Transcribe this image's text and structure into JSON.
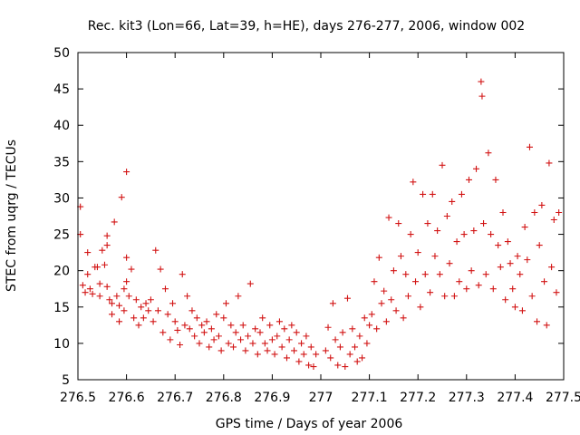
{
  "chart_data": {
    "type": "scatter",
    "title": "Rec. kit3 (Lon=66, Lat=39, h=HE), days 276-277, 2006, window 002",
    "xlabel": "GPS time / Days of year 2006",
    "ylabel": "STEC from uqrg / TECUs",
    "xlim": [
      276.5,
      277.5
    ],
    "ylim": [
      5,
      50
    ],
    "x_ticks": [
      276.5,
      276.6,
      276.7,
      276.8,
      276.9,
      277.0,
      277.1,
      277.2,
      277.3,
      277.4,
      277.5
    ],
    "x_tick_labels": [
      "276.5",
      "276.6",
      "276.7",
      "276.8",
      "276.9",
      "277",
      "277.1",
      "277.2",
      "277.3",
      "277.4",
      "277.5"
    ],
    "y_ticks": [
      5,
      10,
      15,
      20,
      25,
      30,
      35,
      40,
      45,
      50
    ],
    "y_tick_labels": [
      "5",
      "10",
      "15",
      "20",
      "25",
      "30",
      "35",
      "40",
      "45",
      "50"
    ],
    "grid": false,
    "legend": "none",
    "marker": "+",
    "color": "#d21414",
    "points": [
      [
        276.505,
        28.8
      ],
      [
        276.505,
        25.0
      ],
      [
        276.51,
        18.0
      ],
      [
        276.515,
        17.0
      ],
      [
        276.52,
        22.5
      ],
      [
        276.52,
        19.5
      ],
      [
        276.525,
        17.5
      ],
      [
        276.53,
        16.8
      ],
      [
        276.535,
        20.5
      ],
      [
        276.54,
        20.5
      ],
      [
        276.545,
        18.2
      ],
      [
        276.545,
        16.5
      ],
      [
        276.55,
        22.8
      ],
      [
        276.555,
        20.8
      ],
      [
        276.56,
        24.8
      ],
      [
        276.56,
        23.5
      ],
      [
        276.56,
        17.8
      ],
      [
        276.565,
        16.0
      ],
      [
        276.57,
        15.5
      ],
      [
        276.57,
        14.0
      ],
      [
        276.575,
        26.7
      ],
      [
        276.58,
        16.5
      ],
      [
        276.585,
        15.2
      ],
      [
        276.585,
        13.0
      ],
      [
        276.59,
        30.1
      ],
      [
        276.595,
        17.5
      ],
      [
        276.595,
        14.5
      ],
      [
        276.6,
        33.6
      ],
      [
        276.6,
        21.8
      ],
      [
        276.6,
        18.5
      ],
      [
        276.605,
        16.5
      ],
      [
        276.61,
        20.2
      ],
      [
        276.615,
        13.5
      ],
      [
        276.62,
        16.0
      ],
      [
        276.625,
        12.5
      ],
      [
        276.63,
        15.0
      ],
      [
        276.635,
        13.5
      ],
      [
        276.64,
        15.5
      ],
      [
        276.645,
        14.5
      ],
      [
        276.65,
        16.0
      ],
      [
        276.655,
        13.0
      ],
      [
        276.66,
        22.8
      ],
      [
        276.665,
        14.5
      ],
      [
        276.67,
        20.2
      ],
      [
        276.675,
        11.5
      ],
      [
        276.68,
        17.5
      ],
      [
        276.685,
        14.0
      ],
      [
        276.69,
        10.5
      ],
      [
        276.695,
        15.5
      ],
      [
        276.7,
        13.0
      ],
      [
        276.705,
        11.8
      ],
      [
        276.71,
        9.8
      ],
      [
        276.715,
        19.5
      ],
      [
        276.72,
        12.5
      ],
      [
        276.725,
        16.5
      ],
      [
        276.73,
        12.0
      ],
      [
        276.735,
        14.5
      ],
      [
        276.74,
        11.0
      ],
      [
        276.745,
        13.5
      ],
      [
        276.75,
        10.0
      ],
      [
        276.755,
        12.5
      ],
      [
        276.76,
        11.5
      ],
      [
        276.765,
        13.0
      ],
      [
        276.77,
        9.5
      ],
      [
        276.775,
        12.0
      ],
      [
        276.78,
        10.5
      ],
      [
        276.785,
        14.0
      ],
      [
        276.79,
        11.0
      ],
      [
        276.795,
        9.0
      ],
      [
        276.8,
        13.5
      ],
      [
        276.805,
        15.5
      ],
      [
        276.81,
        10.0
      ],
      [
        276.815,
        12.5
      ],
      [
        276.82,
        9.5
      ],
      [
        276.825,
        11.5
      ],
      [
        276.83,
        16.5
      ],
      [
        276.835,
        10.5
      ],
      [
        276.84,
        12.5
      ],
      [
        276.845,
        9.0
      ],
      [
        276.85,
        11.0
      ],
      [
        276.855,
        18.2
      ],
      [
        276.86,
        10.0
      ],
      [
        276.865,
        12.0
      ],
      [
        276.87,
        8.5
      ],
      [
        276.875,
        11.5
      ],
      [
        276.88,
        13.5
      ],
      [
        276.885,
        10.0
      ],
      [
        276.89,
        9.0
      ],
      [
        276.895,
        12.5
      ],
      [
        276.9,
        10.5
      ],
      [
        276.905,
        8.5
      ],
      [
        276.91,
        11.0
      ],
      [
        276.915,
        13.0
      ],
      [
        276.92,
        9.5
      ],
      [
        276.925,
        12.0
      ],
      [
        276.93,
        8.0
      ],
      [
        276.935,
        10.5
      ],
      [
        276.94,
        12.5
      ],
      [
        276.945,
        9.0
      ],
      [
        276.95,
        11.5
      ],
      [
        276.955,
        7.5
      ],
      [
        276.96,
        10.0
      ],
      [
        276.965,
        8.5
      ],
      [
        276.97,
        11.0
      ],
      [
        276.975,
        7.0
      ],
      [
        276.98,
        9.5
      ],
      [
        276.985,
        6.8
      ],
      [
        276.99,
        8.5
      ],
      [
        277.01,
        9.0
      ],
      [
        277.015,
        12.2
      ],
      [
        277.02,
        8.0
      ],
      [
        277.025,
        15.5
      ],
      [
        277.03,
        10.5
      ],
      [
        277.035,
        7.0
      ],
      [
        277.04,
        9.5
      ],
      [
        277.045,
        11.5
      ],
      [
        277.05,
        6.8
      ],
      [
        277.055,
        16.2
      ],
      [
        277.06,
        8.5
      ],
      [
        277.065,
        12.0
      ],
      [
        277.07,
        9.5
      ],
      [
        277.075,
        7.5
      ],
      [
        277.08,
        11.0
      ],
      [
        277.085,
        8.0
      ],
      [
        277.09,
        13.5
      ],
      [
        277.095,
        10.0
      ],
      [
        277.1,
        12.5
      ],
      [
        277.105,
        14.0
      ],
      [
        277.11,
        18.5
      ],
      [
        277.115,
        12.0
      ],
      [
        277.12,
        21.8
      ],
      [
        277.125,
        15.5
      ],
      [
        277.13,
        17.2
      ],
      [
        277.135,
        13.0
      ],
      [
        277.14,
        27.3
      ],
      [
        277.145,
        16.0
      ],
      [
        277.15,
        20.0
      ],
      [
        277.155,
        14.5
      ],
      [
        277.16,
        26.5
      ],
      [
        277.165,
        22.0
      ],
      [
        277.17,
        13.5
      ],
      [
        277.175,
        19.5
      ],
      [
        277.18,
        16.5
      ],
      [
        277.185,
        25.0
      ],
      [
        277.19,
        32.2
      ],
      [
        277.195,
        18.5
      ],
      [
        277.2,
        22.5
      ],
      [
        277.205,
        15.0
      ],
      [
        277.21,
        30.5
      ],
      [
        277.215,
        19.5
      ],
      [
        277.22,
        26.5
      ],
      [
        277.225,
        17.0
      ],
      [
        277.23,
        30.5
      ],
      [
        277.235,
        22.0
      ],
      [
        277.24,
        25.5
      ],
      [
        277.245,
        19.5
      ],
      [
        277.25,
        34.5
      ],
      [
        277.255,
        16.5
      ],
      [
        277.26,
        27.5
      ],
      [
        277.265,
        21.0
      ],
      [
        277.27,
        29.5
      ],
      [
        277.275,
        16.5
      ],
      [
        277.28,
        24.0
      ],
      [
        277.285,
        18.5
      ],
      [
        277.29,
        30.5
      ],
      [
        277.295,
        25.0
      ],
      [
        277.3,
        17.5
      ],
      [
        277.305,
        32.5
      ],
      [
        277.31,
        20.0
      ],
      [
        277.315,
        25.5
      ],
      [
        277.32,
        34.0
      ],
      [
        277.325,
        18.0
      ],
      [
        277.33,
        46.0
      ],
      [
        277.332,
        44.0
      ],
      [
        277.335,
        26.5
      ],
      [
        277.34,
        19.5
      ],
      [
        277.345,
        36.2
      ],
      [
        277.35,
        25.0
      ],
      [
        277.355,
        17.5
      ],
      [
        277.36,
        32.5
      ],
      [
        277.365,
        23.5
      ],
      [
        277.37,
        20.5
      ],
      [
        277.375,
        28.0
      ],
      [
        277.38,
        16.0
      ],
      [
        277.385,
        24.0
      ],
      [
        277.39,
        21.0
      ],
      [
        277.395,
        17.5
      ],
      [
        277.4,
        15.0
      ],
      [
        277.405,
        22.0
      ],
      [
        277.41,
        19.5
      ],
      [
        277.415,
        14.5
      ],
      [
        277.42,
        26.0
      ],
      [
        277.425,
        21.5
      ],
      [
        277.43,
        37.0
      ],
      [
        277.435,
        16.5
      ],
      [
        277.44,
        28.0
      ],
      [
        277.445,
        13.0
      ],
      [
        277.45,
        23.5
      ],
      [
        277.455,
        29.0
      ],
      [
        277.46,
        18.5
      ],
      [
        277.465,
        12.5
      ],
      [
        277.47,
        34.8
      ],
      [
        277.475,
        20.5
      ],
      [
        277.48,
        27.0
      ],
      [
        277.485,
        17.0
      ],
      [
        277.49,
        28.0
      ]
    ]
  }
}
